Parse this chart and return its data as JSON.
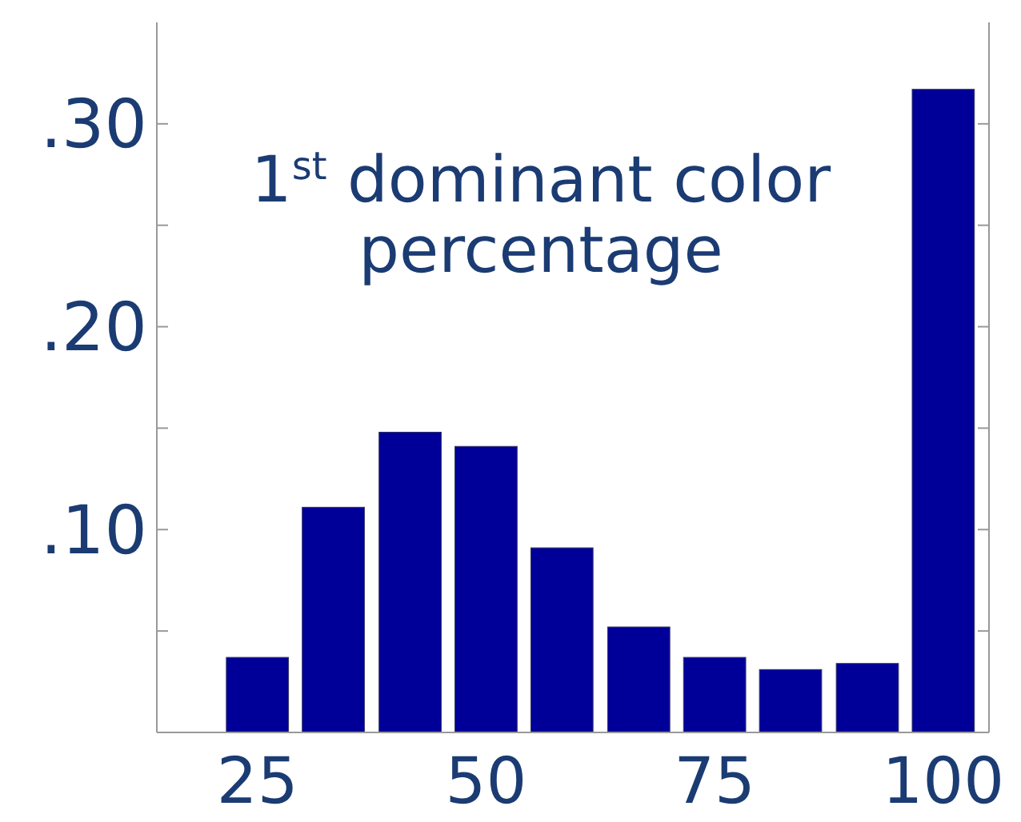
{
  "chart_data": {
    "type": "bar",
    "title": "1$^{st}$ dominant color percentage",
    "x": [
      25,
      33.3,
      41.7,
      50,
      58.3,
      66.7,
      75,
      83.3,
      91.7,
      100
    ],
    "values": [
      0.037,
      0.111,
      0.148,
      0.141,
      0.091,
      0.052,
      0.037,
      0.031,
      0.034,
      0.317
    ],
    "color": "#000099",
    "xlim": [
      14,
      105
    ],
    "xticks": [
      25,
      50,
      75,
      100
    ],
    "ylim": [
      0,
      0.35
    ],
    "yticks": [
      {
        "value": 0.05,
        "label": null
      },
      {
        "value": 0.1,
        "label": ".10"
      },
      {
        "value": 0.15,
        "label": null
      },
      {
        "value": 0.2,
        "label": ".20"
      },
      {
        "value": 0.25,
        "label": null
      },
      {
        "value": 0.3,
        "label": ".30"
      }
    ],
    "grid": false
  }
}
